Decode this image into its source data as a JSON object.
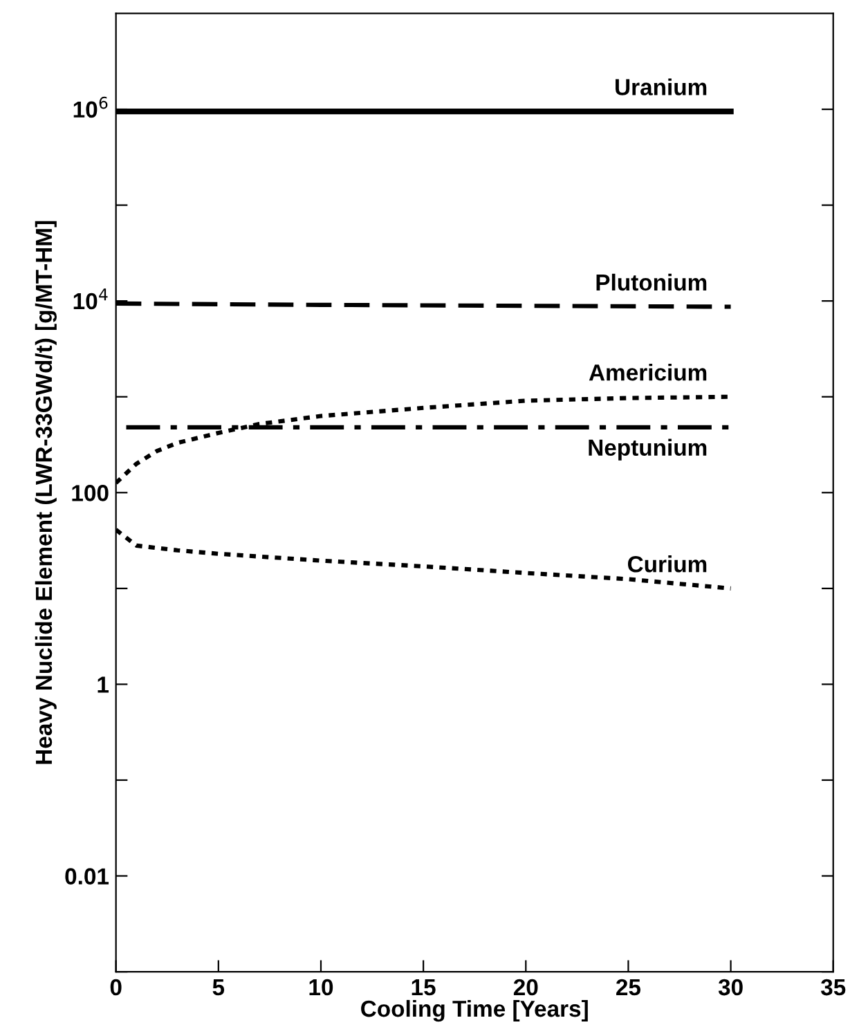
{
  "chart_data": {
    "type": "line",
    "xlabel": "Cooling Time [Years]",
    "ylabel": "Heavy Nuclide Element (LWR-33GWd/t) [g/MT-HM]",
    "log": "y",
    "grid": false,
    "legend": false,
    "xlim": [
      0,
      35
    ],
    "xticks": [
      0,
      5,
      10,
      15,
      20,
      25,
      30,
      35
    ],
    "ylim": [
      0.001,
      10000000
    ],
    "yticks": [
      {
        "value": 0.001,
        "label": null
      },
      {
        "value": 0.01,
        "label": "0.01"
      },
      {
        "value": 0.1,
        "label": null
      },
      {
        "value": 1,
        "label": "1"
      },
      {
        "value": 10,
        "label": null
      },
      {
        "value": 100,
        "label": "100"
      },
      {
        "value": 1000,
        "label": null
      },
      {
        "value": 10000,
        "label": "10$^{4}$"
      },
      {
        "value": 100000,
        "label": null
      },
      {
        "value": 1000000,
        "label": "10$^{6}$"
      }
    ],
    "series": [
      {
        "name": "Uranium",
        "color": "#000000",
        "line_style": "solid",
        "x": [
          0,
          30
        ],
        "values": [
          950000,
          950000
        ]
      },
      {
        "name": "Plutonium",
        "color": "#000000",
        "line_style": "dashed",
        "x": [
          0,
          10,
          20,
          30
        ],
        "values": [
          9400,
          9100,
          8900,
          8700
        ]
      },
      {
        "name": "Americium",
        "color": "#000000",
        "line_style": "dotted",
        "x": [
          0,
          1,
          2,
          3,
          5,
          7,
          10,
          15,
          20,
          25,
          30
        ],
        "values": [
          126,
          200,
          272,
          330,
          420,
          520,
          630,
          766,
          910,
          970,
          1000
        ]
      },
      {
        "name": "Neptunium",
        "color": "#000000",
        "line_style": "dashdot",
        "x": [
          0.5,
          10,
          20,
          30
        ],
        "values": [
          480,
          480,
          480,
          480
        ]
      },
      {
        "name": "Curium",
        "color": "#000000",
        "line_style": "dotted",
        "x": [
          0,
          1,
          3,
          5,
          10,
          15,
          20,
          25,
          30
        ],
        "values": [
          41,
          28,
          25,
          23,
          19.5,
          17,
          14.5,
          12.5,
          10
        ]
      }
    ]
  }
}
